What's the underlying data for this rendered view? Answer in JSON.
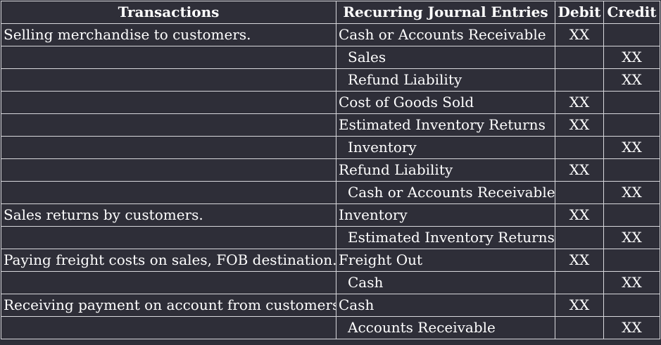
{
  "headers": {
    "transactions": "Transactions",
    "entries": "Recurring Journal Entries",
    "debit": "Debit",
    "credit": "Credit"
  },
  "rows": [
    {
      "transaction": "Selling merchandise to customers.",
      "account": "Cash or Accounts Receivable",
      "debit": "XX",
      "credit": ""
    },
    {
      "transaction": "",
      "account": "Sales",
      "debit": "",
      "credit": "XX"
    },
    {
      "transaction": "",
      "account": "Refund Liability",
      "debit": "",
      "credit": "XX"
    },
    {
      "transaction": "",
      "account": "Cost of Goods Sold",
      "debit": "XX",
      "credit": ""
    },
    {
      "transaction": "",
      "account": "Estimated Inventory Returns",
      "debit": "XX",
      "credit": ""
    },
    {
      "transaction": "",
      "account": "Inventory",
      "debit": "",
      "credit": "XX"
    },
    {
      "transaction": "",
      "account": "Refund Liability",
      "debit": "XX",
      "credit": ""
    },
    {
      "transaction": "",
      "account": "Cash or Accounts Receivable",
      "debit": "",
      "credit": "XX"
    },
    {
      "transaction": "Sales returns by customers.",
      "account": "Inventory",
      "debit": "XX",
      "credit": ""
    },
    {
      "transaction": "",
      "account": "Estimated Inventory Returns",
      "debit": "",
      "credit": "XX"
    },
    {
      "transaction": "Paying freight costs on sales, FOB destination.",
      "account": "Freight Out",
      "debit": "XX",
      "credit": ""
    },
    {
      "transaction": "",
      "account": "Cash",
      "debit": "",
      "credit": "XX"
    },
    {
      "transaction": "Receiving payment on account from customers.",
      "account": "Cash",
      "debit": "XX",
      "credit": ""
    },
    {
      "transaction": "",
      "account": "Accounts Receivable",
      "debit": "",
      "credit": "XX"
    }
  ],
  "colors": {
    "background": "#2e2e38",
    "text": "#ffffff",
    "border": "#d8d8dc"
  }
}
